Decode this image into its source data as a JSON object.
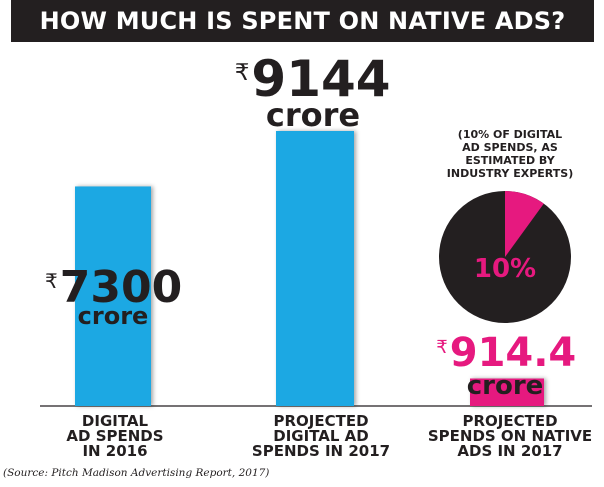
{
  "title": "HOW MUCH IS SPENT ON NATIVE ADS?",
  "currency_symbol": "₹",
  "unit": "crore",
  "chart_data": {
    "type": "bar",
    "title": "HOW MUCH IS SPENT ON NATIVE ADS?",
    "categories": [
      "DIGITAL AD SPENDS IN 2016",
      "PROJECTED DIGITAL AD SPENDS IN 2017",
      "PROJECTED SPENDS ON NATIVE ADS IN 2017"
    ],
    "category_lines": [
      [
        "DIGITAL",
        "AD SPENDS",
        "IN 2016"
      ],
      [
        "PROJECTED",
        "DIGITAL AD",
        "SPENDS IN 2017"
      ],
      [
        "PROJECTED",
        "SPENDS ON NATIVE",
        "ADS IN 2017"
      ]
    ],
    "values": [
      7300,
      9144,
      914.4
    ],
    "value_labels": [
      "7300",
      "9144",
      "914.4"
    ],
    "unit": "crore",
    "bar_colors": [
      "#1ca8e3",
      "#1ca8e3",
      "#e6197f"
    ],
    "ylim": [
      0,
      9144
    ],
    "grid": false,
    "pie": {
      "label": "10%",
      "value": 10,
      "note_lines": [
        "(10% OF DIGITAL",
        "AD SPENDS, AS",
        "ESTIMATED BY",
        "INDUSTRY EXPERTS)"
      ],
      "colors": [
        "#e6197f",
        "#231f20"
      ]
    }
  },
  "source": "(Source: Pitch Madison Advertising Report, 2017)"
}
